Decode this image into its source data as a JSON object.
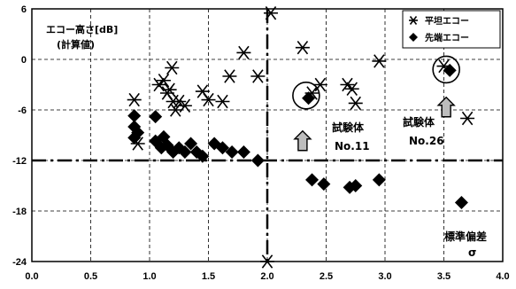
{
  "chart_data": {
    "type": "scatter",
    "xlim": [
      0.0,
      4.0
    ],
    "ylim": [
      -24,
      6
    ],
    "x_ticks": [
      "0.0",
      "0.5",
      "1.0",
      "1.5",
      "2.0",
      "2.5",
      "3.0",
      "3.5",
      "4.0"
    ],
    "y_ticks": [
      "6",
      "0",
      "-6",
      "-12",
      "-18",
      "-24"
    ],
    "ylabel": "エコー高さ[dB]",
    "ylabel_sub": "(計算値)",
    "xlabel": "標準偏差",
    "xlabel_symbol": "σ",
    "grid": true,
    "legend_position": "top-right",
    "reference_lines": {
      "vertical_x": 2.0,
      "horizontal_y": -12
    },
    "series": [
      {
        "name": "平坦エコー",
        "marker": "asterisk",
        "points": [
          [
            0.87,
            -4.8
          ],
          [
            0.9,
            -10.0
          ],
          [
            1.08,
            -3.0
          ],
          [
            1.12,
            -2.5
          ],
          [
            1.15,
            -4.0
          ],
          [
            1.17,
            -3.6
          ],
          [
            1.19,
            -1.0
          ],
          [
            1.2,
            -5.0
          ],
          [
            1.22,
            -6.0
          ],
          [
            1.25,
            -5.0
          ],
          [
            1.3,
            -5.5
          ],
          [
            1.45,
            -3.8
          ],
          [
            1.5,
            -4.8
          ],
          [
            1.62,
            -5.0
          ],
          [
            1.68,
            -2.0
          ],
          [
            1.8,
            0.8
          ],
          [
            1.92,
            -2.0
          ],
          [
            2.03,
            5.5
          ],
          [
            2.0,
            -24.0
          ],
          [
            2.3,
            1.4
          ],
          [
            2.38,
            -4.0
          ],
          [
            2.45,
            -3.0
          ],
          [
            2.68,
            -3.0
          ],
          [
            2.72,
            -3.5
          ],
          [
            2.75,
            -5.2
          ],
          [
            2.95,
            -0.2
          ],
          [
            3.5,
            -0.8
          ],
          [
            3.7,
            -7.0
          ]
        ]
      },
      {
        "name": "先端エコー",
        "marker": "diamond",
        "points": [
          [
            0.87,
            -6.7
          ],
          [
            0.87,
            -8.0
          ],
          [
            0.87,
            -9.3
          ],
          [
            0.9,
            -8.7
          ],
          [
            1.05,
            -6.8
          ],
          [
            1.05,
            -9.7
          ],
          [
            1.1,
            -10.5
          ],
          [
            1.12,
            -9.2
          ],
          [
            1.15,
            -10.2
          ],
          [
            1.2,
            -11.0
          ],
          [
            1.25,
            -10.5
          ],
          [
            1.3,
            -11.0
          ],
          [
            1.35,
            -10.0
          ],
          [
            1.4,
            -11.0
          ],
          [
            1.45,
            -11.5
          ],
          [
            1.55,
            -10.0
          ],
          [
            1.62,
            -10.5
          ],
          [
            1.7,
            -11.0
          ],
          [
            1.8,
            -11.0
          ],
          [
            1.92,
            -12.0
          ],
          [
            2.35,
            -4.6
          ],
          [
            2.38,
            -14.3
          ],
          [
            2.48,
            -14.8
          ],
          [
            2.7,
            -15.2
          ],
          [
            2.75,
            -15.0
          ],
          [
            2.95,
            -14.3
          ],
          [
            3.55,
            -1.3
          ],
          [
            3.65,
            -17.0
          ]
        ]
      }
    ],
    "highlights": [
      [
        2.33,
        -4.3
      ],
      [
        3.52,
        -1.2
      ]
    ],
    "annotations": [
      {
        "text": "試験体",
        "sub": "No.11",
        "x": 2.73,
        "y": -8.5
      },
      {
        "text": "試験体",
        "sub": "No.26",
        "x": 3.24,
        "y": -8.2
      }
    ],
    "arrows": [
      [
        2.3,
        -8.5
      ],
      [
        3.52,
        -4.5
      ]
    ]
  }
}
